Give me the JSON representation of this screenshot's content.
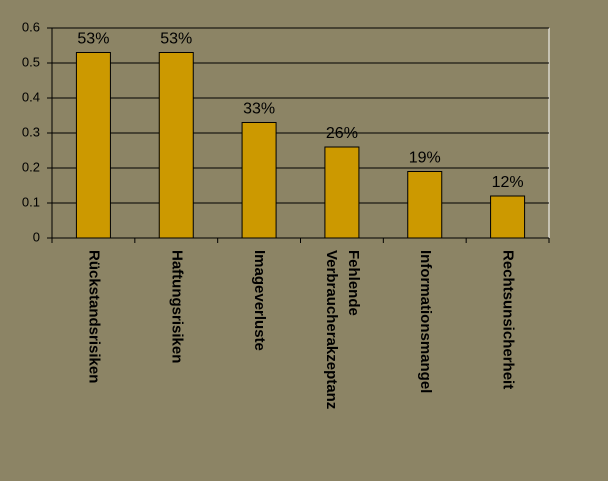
{
  "chart_data": {
    "type": "bar",
    "categories": [
      "Rückstandsrisiken",
      "Haftungsrisiken",
      "Imageverluste",
      "Fehlende Verbraucherakzeptanz",
      "Informationsmangel",
      "Rechtsunsicherheit"
    ],
    "values": [
      0.53,
      0.53,
      0.33,
      0.26,
      0.19,
      0.12
    ],
    "value_labels": [
      "53%",
      "53%",
      "33%",
      "26%",
      "19%",
      "12%"
    ],
    "color": "#cc9900",
    "ylim": [
      0,
      0.6
    ],
    "yticks": [
      0,
      0.1,
      0.2,
      0.3,
      0.4,
      0.5,
      0.6
    ],
    "grid": true
  }
}
